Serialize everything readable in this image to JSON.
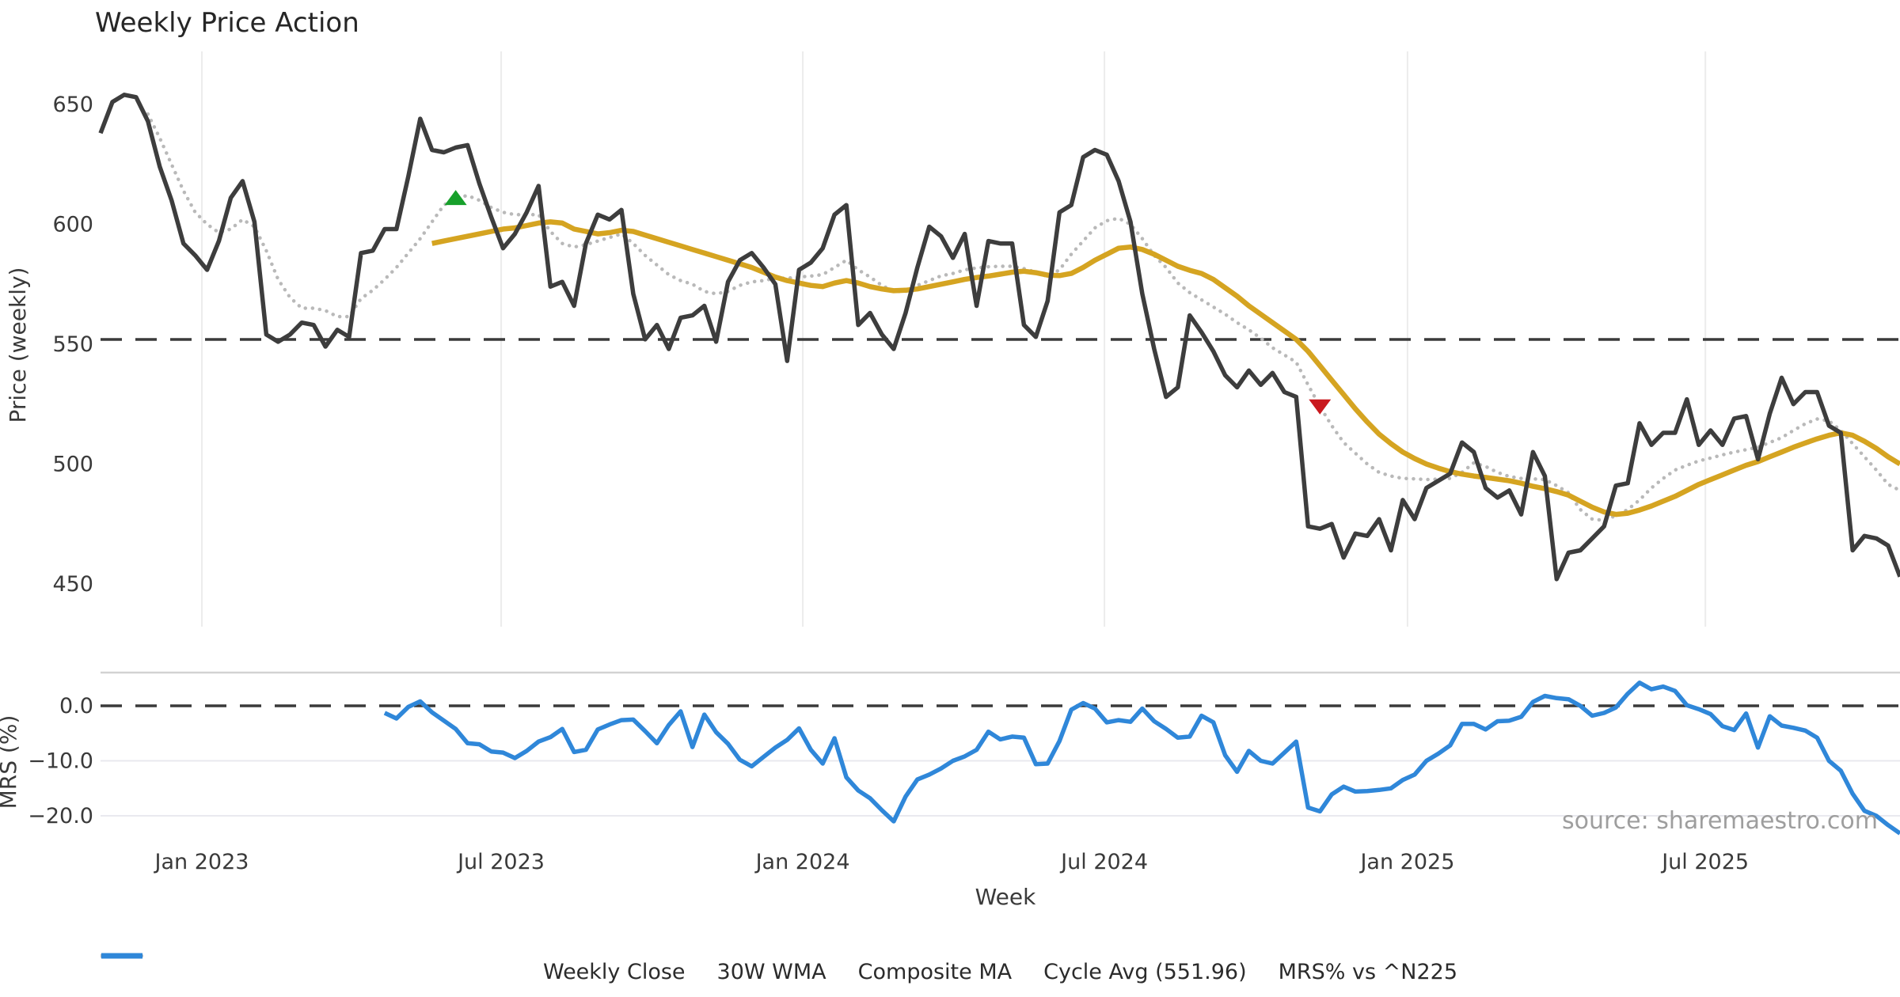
{
  "title": "Weekly Price Action",
  "source": "source: sharemaestro.com",
  "colors": {
    "close": "#3d3d3d",
    "wma": "#d5a421",
    "composite": "#b9b9b9",
    "cycle": "#3a3a3a",
    "mrs": "#2f87d9",
    "buy_marker": "#17a02b",
    "sell_marker": "#c9191e",
    "grid": "#ececec",
    "lower_grid": "#e9e9ef",
    "spine": "#d2d2d2"
  },
  "legend": {
    "items": [
      {
        "label": "Weekly Close",
        "style": "solid",
        "color": "#3d3d3d"
      },
      {
        "label": "30W WMA",
        "style": "solid",
        "color": "#d5a421"
      },
      {
        "label": "Composite MA",
        "style": "dotted",
        "color": "#b9b9b9"
      },
      {
        "label": "Cycle Avg (551.96)",
        "style": "dashed",
        "color": "#3a3a3a"
      },
      {
        "label": "MRS% vs ^N225",
        "style": "solid",
        "color": "#2f87d9"
      }
    ]
  },
  "chart_data": {
    "type": "line",
    "title": "Weekly Price Action",
    "xlabel": "Week",
    "x_axis": {
      "tick_labels": [
        "Jan 2023",
        "Jul 2023",
        "Jan 2024",
        "Jul 2024",
        "Jan 2025",
        "Jul 2025"
      ],
      "tick_indices": [
        8.56,
        33.84,
        59.32,
        84.8,
        110.4,
        135.56
      ]
    },
    "main": {
      "ylabel": "Price (weekly)",
      "ylim": [
        440,
        662
      ],
      "ytick_values": [
        650,
        600,
        550,
        500,
        450
      ],
      "ytick_labels": [
        "650",
        "600",
        "550",
        "500",
        "450"
      ],
      "cycle_avg": 551.96,
      "grid": "vertical-only",
      "series": [
        {
          "name": "Weekly Close",
          "start_index": 0,
          "values": [
            638,
            651,
            654,
            653,
            643,
            624,
            610,
            592,
            587,
            581,
            593,
            611,
            618,
            601,
            554,
            551,
            554,
            559,
            558,
            549,
            556,
            553,
            588,
            589,
            598,
            598,
            620,
            644,
            631,
            630,
            632,
            633,
            617,
            603,
            590,
            596,
            605,
            616,
            574,
            576,
            566,
            592,
            604,
            602,
            606,
            571,
            552,
            558,
            548,
            561,
            562,
            566,
            551,
            576,
            585,
            588,
            582,
            575,
            543,
            581,
            584,
            590,
            604,
            608,
            558,
            563,
            554,
            548,
            563,
            582,
            599,
            595,
            586,
            596,
            566,
            593,
            592,
            592,
            558,
            553,
            568,
            605,
            608,
            628,
            631,
            629,
            618,
            601,
            571,
            548,
            528,
            532,
            562,
            555,
            547,
            537,
            532,
            539,
            533,
            538,
            530,
            528,
            474,
            473,
            475,
            461,
            471,
            470,
            477,
            464,
            485,
            477,
            490,
            493,
            496,
            509,
            505,
            490,
            486,
            489,
            479,
            505,
            495,
            452,
            463,
            464,
            469,
            474,
            491,
            492,
            517,
            508,
            513,
            513,
            527,
            508,
            514,
            508,
            519,
            520,
            502,
            521,
            536,
            525,
            530,
            530,
            516,
            513,
            464,
            470,
            469,
            466,
            453
          ]
        },
        {
          "name": "30W WMA",
          "start_index": 28,
          "values": [
            592,
            593,
            594,
            595,
            596,
            597,
            598,
            598.5,
            599.5,
            600.5,
            601,
            600.5,
            598,
            597,
            596,
            596.5,
            597.5,
            597,
            595.5,
            594,
            592.5,
            591,
            589.5,
            588,
            586.5,
            585,
            583.5,
            582,
            580,
            578,
            576.5,
            575.5,
            574.5,
            574,
            575.5,
            576.5,
            575.5,
            574,
            573,
            572.3,
            572.5,
            573,
            574,
            575,
            576,
            577,
            577.8,
            578.4,
            579.2,
            580,
            580.4,
            579.8,
            578.8,
            578.6,
            579.5,
            582,
            585,
            587.5,
            590,
            590.5,
            589.5,
            587.5,
            585,
            582.5,
            580.8,
            579.5,
            577,
            573.5,
            570,
            566,
            562.5,
            559,
            555.5,
            552,
            547,
            541,
            535,
            529,
            523,
            517.5,
            512.5,
            508.5,
            505,
            502.3,
            500,
            498.3,
            496.8,
            495.8,
            495,
            494.4,
            493.7,
            493,
            492,
            490.7,
            489.7,
            488.5,
            487,
            484.5,
            482,
            480,
            479,
            479.5,
            480.8,
            482.5,
            484.5,
            486.5,
            489,
            491.5,
            493.5,
            495.5,
            497.5,
            499.5,
            501,
            503,
            505,
            507,
            508.8,
            510.5,
            512,
            513,
            512,
            509.5,
            506.5,
            503,
            500
          ]
        },
        {
          "name": "Composite MA",
          "start_index": 4,
          "values": [
            646,
            636,
            625,
            614,
            605,
            600,
            596.5,
            598,
            602,
            599,
            589,
            577,
            569.5,
            565,
            565,
            564,
            561.5,
            561.5,
            569,
            572.5,
            577,
            582,
            588,
            594,
            601,
            608,
            611,
            612,
            610,
            607,
            605,
            604,
            604,
            604,
            597,
            592,
            590.5,
            591.5,
            593,
            594.5,
            596,
            592,
            587,
            583,
            579,
            576.5,
            575,
            572,
            571,
            572,
            574.5,
            576,
            576.5,
            577.5,
            577.5,
            578,
            578.4,
            579,
            582,
            585,
            581,
            578,
            574.5,
            572,
            572,
            574.5,
            576.5,
            578.5,
            579.5,
            581,
            581.8,
            582.3,
            582.5,
            582.5,
            581.5,
            580,
            578.2,
            581,
            587.5,
            593,
            598.5,
            601.5,
            602.5,
            600,
            594,
            587,
            582,
            575.5,
            571.5,
            568.5,
            565.5,
            562.5,
            559,
            556,
            552.5,
            548.5,
            545.5,
            542.5,
            533,
            524,
            516,
            509,
            504.5,
            500,
            496.5,
            495,
            494,
            493.8,
            493.5,
            493.7,
            494,
            496.5,
            500.5,
            499,
            496.5,
            494.8,
            494,
            493.8,
            493.5,
            491,
            488,
            481,
            477,
            476.5,
            478.5,
            481,
            485,
            490,
            494,
            497.5,
            499.5,
            501.3,
            502.5,
            503.8,
            505,
            506,
            507,
            509,
            511,
            514,
            516.8,
            518.8,
            518,
            514,
            508.5,
            503,
            497.5,
            491.5,
            489
          ]
        }
      ],
      "markers": [
        {
          "type": "buy",
          "shape": "triangle-up",
          "index": 30,
          "value": 611
        },
        {
          "type": "sell",
          "shape": "triangle-down",
          "index": 103,
          "value": 524
        }
      ]
    },
    "lower": {
      "ylabel": "MRS (%)",
      "ylim": [
        -26,
        6
      ],
      "ytick_values": [
        0,
        -10,
        -20
      ],
      "ytick_labels": [
        "0.0",
        "−10.0",
        "−20.0"
      ],
      "zero_line": 0,
      "series": [
        {
          "name": "MRS% vs ^N225",
          "start_index": 24,
          "values": [
            -1.3,
            -2.3,
            -0.2,
            0.8,
            -1.2,
            -2.7,
            -4.2,
            -6.8,
            -7.0,
            -8.3,
            -8.5,
            -9.5,
            -8.2,
            -6.5,
            -5.7,
            -4.2,
            -8.4,
            -8.0,
            -4.3,
            -3.4,
            -2.6,
            -2.5,
            -4.6,
            -6.8,
            -3.5,
            -1.0,
            -7.5,
            -1.6,
            -4.8,
            -6.9,
            -9.8,
            -11.0,
            -9.3,
            -7.6,
            -6.2,
            -4.1,
            -8.0,
            -10.5,
            -5.9,
            -13.0,
            -15.4,
            -16.8,
            -19.0,
            -21.0,
            -16.5,
            -13.4,
            -12.5,
            -11.4,
            -10.0,
            -9.2,
            -8.0,
            -4.7,
            -6.1,
            -5.6,
            -5.8,
            -10.6,
            -10.5,
            -6.4,
            -0.7,
            0.5,
            -0.5,
            -3.0,
            -2.6,
            -2.9,
            -0.5,
            -2.8,
            -4.2,
            -5.8,
            -5.6,
            -1.8,
            -3.0,
            -9.0,
            -12.0,
            -8.2,
            -10.0,
            -10.5,
            -8.5,
            -6.5,
            -18.5,
            -19.2,
            -16.1,
            -14.7,
            -15.6,
            -15.5,
            -15.3,
            -15.0,
            -13.5,
            -12.5,
            -10.0,
            -8.7,
            -7.2,
            -3.3,
            -3.3,
            -4.3,
            -2.8,
            -2.7,
            -2.0,
            0.7,
            1.8,
            1.4,
            1.2,
            0.0,
            -1.8,
            -1.3,
            -0.3,
            2.2,
            4.2,
            3.0,
            3.5,
            2.7,
            0.1,
            -0.6,
            -1.5,
            -3.7,
            -4.4,
            -1.4,
            -7.6,
            -1.9,
            -3.6,
            -4.0,
            -4.5,
            -5.8,
            -10.0,
            -11.8,
            -16.0,
            -19.1,
            -20.0,
            -21.7,
            -23.2
          ]
        }
      ]
    }
  }
}
